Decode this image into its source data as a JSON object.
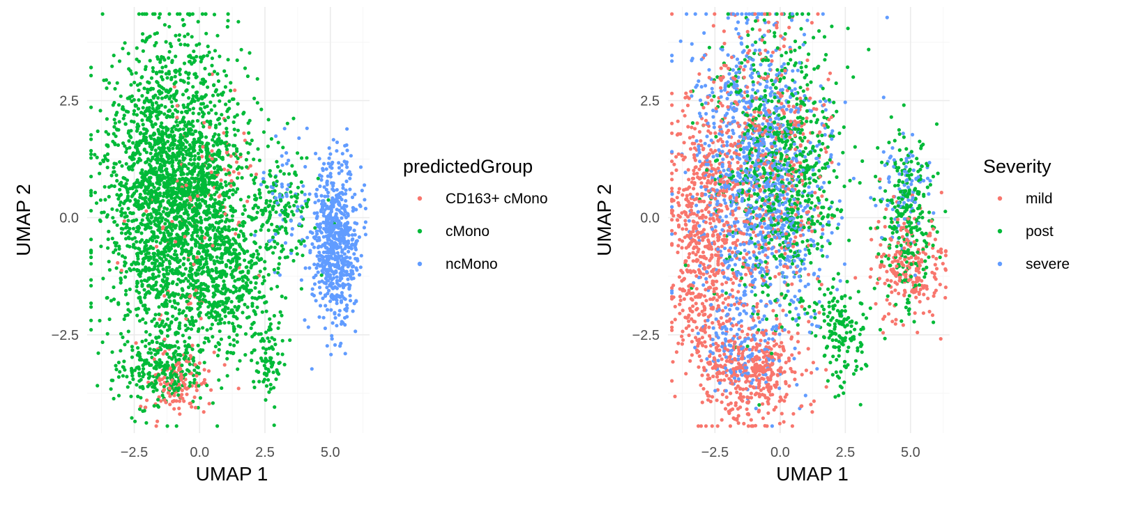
{
  "chart_data": [
    {
      "type": "scatter",
      "title": "",
      "xlabel": "UMAP 1",
      "ylabel": "UMAP 2",
      "xlim": [
        -4.3,
        6.5
      ],
      "ylim": [
        -4.6,
        4.5
      ],
      "x_ticks": [
        -2.5,
        0.0,
        2.5,
        5.0
      ],
      "x_tick_labels": [
        "−2.5",
        "0.0",
        "2.5",
        "5.0"
      ],
      "y_ticks": [
        -2.5,
        0.0,
        2.5
      ],
      "y_tick_labels": [
        "−2.5",
        "0.0",
        "2.5"
      ],
      "grid": true,
      "legend": {
        "title": "predictedGroup",
        "placement": "right"
      },
      "series": [
        {
          "name": "CD163+ cMono",
          "color": "#F8766D",
          "clusters": [
            {
              "center": [
                -0.9,
                -3.6
              ],
              "spread": [
                0.55,
                0.35
              ],
              "count": 120
            },
            {
              "center": [
                -0.4,
                -0.2
              ],
              "spread": [
                1.0,
                1.5
              ],
              "count": 90
            },
            {
              "center": [
                1.2,
                1.2
              ],
              "spread": [
                0.6,
                0.7
              ],
              "count": 25
            }
          ]
        },
        {
          "name": "cMono",
          "color": "#00BA38",
          "clusters": [
            {
              "center": [
                -0.9,
                0.4
              ],
              "spread": [
                1.35,
                1.65
              ],
              "count": 2600
            },
            {
              "center": [
                -1.5,
                -3.2
              ],
              "spread": [
                0.8,
                0.45
              ],
              "count": 220
            },
            {
              "center": [
                1.3,
                -1.3
              ],
              "spread": [
                0.8,
                0.8
              ],
              "count": 330
            },
            {
              "center": [
                2.6,
                -3.1
              ],
              "spread": [
                0.25,
                0.4
              ],
              "count": 70
            },
            {
              "center": [
                3.2,
                0.1
              ],
              "spread": [
                0.6,
                0.7
              ],
              "count": 150
            }
          ]
        },
        {
          "name": "ncMono",
          "color": "#619CFF",
          "clusters": [
            {
              "center": [
                5.2,
                -0.5
              ],
              "spread": [
                0.45,
                0.85
              ],
              "count": 650
            },
            {
              "center": [
                3.4,
                0.6
              ],
              "spread": [
                0.5,
                0.8
              ],
              "count": 60
            }
          ]
        }
      ]
    },
    {
      "type": "scatter",
      "title": "",
      "xlabel": "UMAP 1",
      "ylabel": "UMAP 2",
      "xlim": [
        -4.3,
        6.5
      ],
      "ylim": [
        -4.6,
        4.5
      ],
      "x_ticks": [
        -2.5,
        0.0,
        2.5,
        5.0
      ],
      "x_tick_labels": [
        "−2.5",
        "0.0",
        "2.5",
        "5.0"
      ],
      "y_ticks": [
        -2.5,
        0.0,
        2.5
      ],
      "y_tick_labels": [
        "−2.5",
        "0.0",
        "2.5"
      ],
      "grid": true,
      "legend": {
        "title": "Severity",
        "placement": "right"
      },
      "series": [
        {
          "name": "mild",
          "color": "#F8766D",
          "clusters": [
            {
              "center": [
                -2.8,
                -0.4
              ],
              "spread": [
                0.75,
                1.6
              ],
              "count": 700
            },
            {
              "center": [
                -1.0,
                -3.3
              ],
              "spread": [
                0.9,
                0.55
              ],
              "count": 400
            },
            {
              "center": [
                4.9,
                -1.1
              ],
              "spread": [
                0.7,
                0.6
              ],
              "count": 220
            },
            {
              "center": [
                -0.4,
                1.0
              ],
              "spread": [
                1.1,
                1.5
              ],
              "count": 420
            }
          ]
        },
        {
          "name": "post",
          "color": "#00BA38",
          "clusters": [
            {
              "center": [
                0.0,
                1.0
              ],
              "spread": [
                1.15,
                1.5
              ],
              "count": 800
            },
            {
              "center": [
                4.9,
                0.0
              ],
              "spread": [
                0.55,
                0.9
              ],
              "count": 260
            },
            {
              "center": [
                2.3,
                -2.5
              ],
              "spread": [
                0.5,
                0.6
              ],
              "count": 150
            }
          ]
        },
        {
          "name": "severe",
          "color": "#619CFF",
          "clusters": [
            {
              "center": [
                -0.8,
                0.8
              ],
              "spread": [
                1.3,
                1.7
              ],
              "count": 1100
            },
            {
              "center": [
                4.7,
                0.5
              ],
              "spread": [
                0.5,
                0.6
              ],
              "count": 90
            },
            {
              "center": [
                -1.5,
                -2.8
              ],
              "spread": [
                0.7,
                0.5
              ],
              "count": 120
            }
          ]
        }
      ]
    }
  ]
}
